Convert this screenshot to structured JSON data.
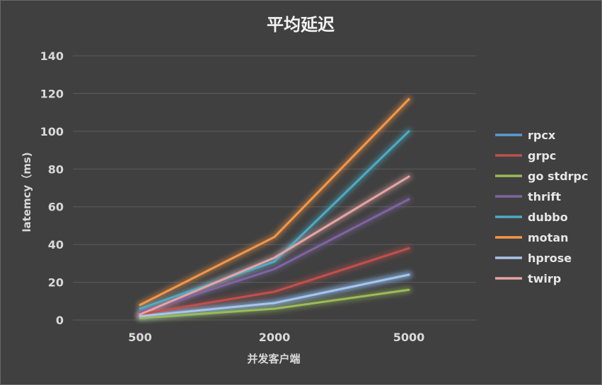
{
  "chart_data": {
    "type": "line",
    "title": "平均延迟",
    "xlabel": "并发客户端",
    "ylabel": "latemcy（ms)",
    "categories": [
      "500",
      "2000",
      "5000"
    ],
    "ylim": [
      0,
      140
    ],
    "yticks": [
      0,
      20,
      40,
      60,
      80,
      100,
      120,
      140
    ],
    "grid": true,
    "legend_position": "right",
    "series": [
      {
        "name": "rpcx",
        "color": "#5b9bd5",
        "values": [
          2,
          9,
          24
        ]
      },
      {
        "name": "grpc",
        "color": "#c0504d",
        "values": [
          3,
          15,
          38
        ]
      },
      {
        "name": "go stdrpc",
        "color": "#9bbb59",
        "values": [
          1,
          6,
          16
        ]
      },
      {
        "name": "thrift",
        "color": "#8064a2",
        "values": [
          4,
          27,
          64
        ]
      },
      {
        "name": "dubbo",
        "color": "#4bacc6",
        "values": [
          6,
          31,
          100
        ]
      },
      {
        "name": "motan",
        "color": "#f79646",
        "values": [
          8,
          44,
          117
        ]
      },
      {
        "name": "hprose",
        "color": "#a9c4eb",
        "values": [
          2,
          9,
          24
        ]
      },
      {
        "name": "twirp",
        "color": "#e6a3a3",
        "values": [
          3,
          33,
          76
        ]
      }
    ]
  }
}
